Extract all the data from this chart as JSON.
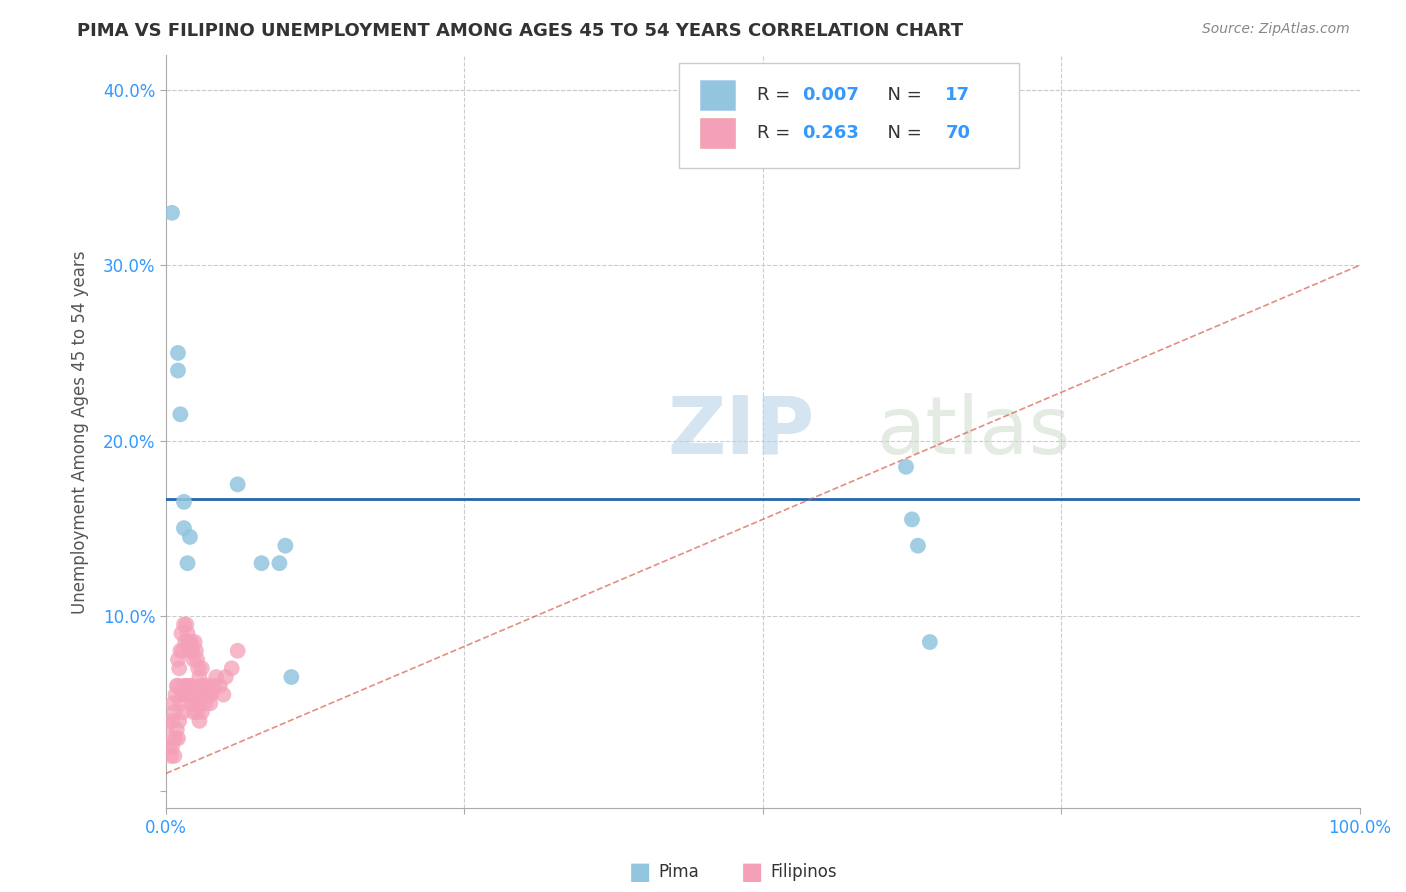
{
  "title": "PIMA VS FILIPINO UNEMPLOYMENT AMONG AGES 45 TO 54 YEARS CORRELATION CHART",
  "source": "Source: ZipAtlas.com",
  "ylabel": "Unemployment Among Ages 45 to 54 years",
  "xlim": [
    0.0,
    1.0
  ],
  "ylim": [
    -0.01,
    0.42
  ],
  "xticks": [
    0.0,
    0.25,
    0.5,
    0.75,
    1.0
  ],
  "xticklabels": [
    "0.0%",
    "",
    "",
    "",
    "100.0%"
  ],
  "yticks": [
    0.0,
    0.1,
    0.2,
    0.3,
    0.4
  ],
  "yticklabels": [
    "",
    "10.0%",
    "20.0%",
    "30.0%",
    "40.0%"
  ],
  "pima_color": "#92c5de",
  "filipino_color": "#f4a0b8",
  "pima_line_color": "#2166ac",
  "filipino_line_color": "#d6604d",
  "grid_color": "#cccccc",
  "background_color": "#ffffff",
  "pima_x": [
    0.005,
    0.01,
    0.01,
    0.012,
    0.015,
    0.015,
    0.018,
    0.02,
    0.06,
    0.08,
    0.095,
    0.1,
    0.105,
    0.62,
    0.625,
    0.63,
    0.64
  ],
  "pima_y": [
    0.33,
    0.25,
    0.24,
    0.215,
    0.165,
    0.15,
    0.13,
    0.145,
    0.175,
    0.13,
    0.13,
    0.14,
    0.065,
    0.185,
    0.155,
    0.14,
    0.085
  ],
  "pima_line_y_intercept": 0.143,
  "pima_line_slope": 0.0,
  "fil_line_x0": 0.0,
  "fil_line_y0": 0.01,
  "fil_line_x1": 1.0,
  "fil_line_y1": 0.3,
  "filipino_x": [
    0.002,
    0.003,
    0.004,
    0.005,
    0.005,
    0.006,
    0.006,
    0.007,
    0.007,
    0.008,
    0.008,
    0.009,
    0.009,
    0.01,
    0.01,
    0.01,
    0.011,
    0.011,
    0.012,
    0.012,
    0.013,
    0.013,
    0.014,
    0.014,
    0.015,
    0.015,
    0.016,
    0.016,
    0.017,
    0.017,
    0.018,
    0.018,
    0.019,
    0.019,
    0.02,
    0.02,
    0.021,
    0.021,
    0.022,
    0.022,
    0.023,
    0.023,
    0.024,
    0.024,
    0.025,
    0.025,
    0.026,
    0.026,
    0.027,
    0.027,
    0.028,
    0.028,
    0.029,
    0.03,
    0.03,
    0.031,
    0.032,
    0.033,
    0.034,
    0.035,
    0.036,
    0.037,
    0.038,
    0.04,
    0.042,
    0.045,
    0.048,
    0.05,
    0.055,
    0.06
  ],
  "filipino_y": [
    0.038,
    0.025,
    0.02,
    0.04,
    0.025,
    0.05,
    0.03,
    0.045,
    0.02,
    0.055,
    0.03,
    0.06,
    0.035,
    0.075,
    0.06,
    0.03,
    0.07,
    0.04,
    0.08,
    0.05,
    0.09,
    0.055,
    0.08,
    0.045,
    0.095,
    0.06,
    0.085,
    0.055,
    0.095,
    0.06,
    0.09,
    0.055,
    0.085,
    0.06,
    0.08,
    0.055,
    0.085,
    0.06,
    0.08,
    0.05,
    0.075,
    0.045,
    0.085,
    0.055,
    0.08,
    0.05,
    0.075,
    0.045,
    0.07,
    0.05,
    0.065,
    0.04,
    0.06,
    0.07,
    0.045,
    0.06,
    0.055,
    0.05,
    0.055,
    0.06,
    0.055,
    0.05,
    0.055,
    0.06,
    0.065,
    0.06,
    0.055,
    0.065,
    0.07,
    0.08
  ]
}
